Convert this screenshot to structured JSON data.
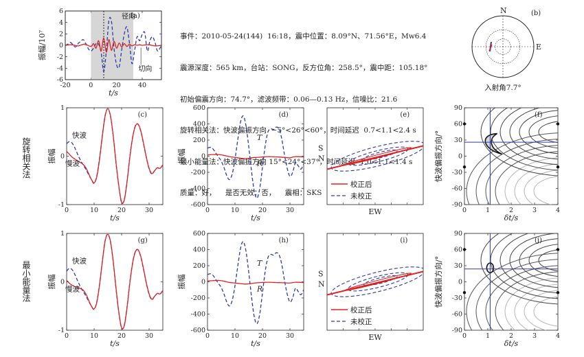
{
  "info_lines": [
    "事件：2010-05-24(144)  16:18，震中位置：8.09°N、71.56°E，Mw6.4",
    "震源深度：565 km，台站：SONG，反方位角：258.5°，震中距：105.18°",
    "初始偏震方向：74.7°，滤波频带：0.06—0.13 Hz，信噪比：21.6",
    "旋转相关法：快波偏振方向  −5°<26°<60°，时间延迟  0.7<1.1<2.4 s",
    "最小能量法：快波偏振方向 15°<24°<37°，时间延迟  1.0<1.1<1.4 s",
    "质量：好，    是否无效：否，    震相：SKS"
  ],
  "row_labels": {
    "rc": "旋转相关法",
    "me": "最小能量法"
  },
  "colors": {
    "red": "#e02020",
    "blue": "#2a3aa8",
    "gray": "#d6d6d6",
    "dark": "#222222"
  },
  "panel_letters": {
    "a": "(a)",
    "b": "(b)",
    "c": "(c)",
    "d": "(d)",
    "e": "(e)",
    "f": "(f)",
    "g": "(g)",
    "h": "(h)",
    "i": "(i)",
    "j": "(j)"
  },
  "panel_b": {
    "labels": {
      "n": "N",
      "e": "E"
    },
    "incidence": "入射角7.7°"
  },
  "chart_data": [
    {
      "id": "a",
      "type": "line",
      "xlabel": "t/s",
      "ylabel": "振幅/10⁷",
      "xlim": [
        -20,
        55
      ],
      "ylim": [
        -6,
        6
      ],
      "xticks": [
        -20,
        0,
        20,
        40
      ],
      "yticks": [
        -6,
        -4,
        -2,
        0,
        2,
        4,
        6
      ],
      "shaded_window": [
        0,
        33
      ],
      "marker_line": 10,
      "annotations": {
        "radial": "径向",
        "transverse": "切向"
      },
      "series": [
        {
          "name": "径向",
          "style": "dashed",
          "x": [
            -20,
            -18,
            -16,
            -14,
            -12,
            -10,
            -8,
            -6,
            -4,
            -2,
            0,
            2,
            4,
            6,
            8,
            10,
            12,
            14,
            16,
            18,
            20,
            22,
            24,
            26,
            28,
            30,
            32,
            34,
            36,
            38,
            40,
            42,
            44,
            46,
            48,
            50,
            52,
            55
          ],
          "y": [
            0,
            0.2,
            0.5,
            0.1,
            -0.3,
            0.3,
            0.7,
            1.0,
            0.3,
            -0.6,
            -1.0,
            -0.5,
            0.3,
            0.2,
            -1.3,
            -4.6,
            -1.0,
            4.3,
            4.2,
            -0.5,
            -3.4,
            -3.8,
            -0.8,
            2.0,
            3.2,
            0.5,
            -3.2,
            -1.0,
            1.5,
            0.8,
            1.9,
            2.2,
            -1.0,
            0.8,
            1.5,
            0.5,
            -1.0,
            0
          ]
        },
        {
          "name": "切向",
          "style": "solid",
          "x": [
            -20,
            -15,
            -10,
            -5,
            0,
            2,
            4,
            6,
            8,
            10,
            12,
            14,
            16,
            18,
            20,
            22,
            24,
            26,
            28,
            30,
            32,
            34,
            36,
            38,
            40,
            45,
            50,
            55
          ],
          "y": [
            0,
            0.1,
            -0.1,
            0.2,
            -0.2,
            0.3,
            -0.5,
            0.8,
            -1.0,
            1.3,
            -1.2,
            1.0,
            -0.9,
            0.7,
            -0.5,
            0.4,
            -0.3,
            0.3,
            -0.2,
            0.2,
            -0.1,
            0.1,
            0,
            0.1,
            0,
            0.1,
            -0.1,
            0
          ]
        }
      ]
    },
    {
      "id": "c",
      "type": "line",
      "xlabel": "t/s",
      "ylabel": "振幅",
      "xlim": [
        0,
        35
      ],
      "ylim": [
        -1,
        1
      ],
      "xticks": [
        0,
        10,
        20,
        30
      ],
      "yticks": [
        -1,
        0,
        1
      ],
      "annotations": {
        "fast": "快波",
        "slow": "慢波"
      },
      "series": [
        {
          "name": "快波",
          "style": "solid",
          "x": [
            0,
            1,
            2,
            3,
            4,
            5,
            6,
            7,
            8,
            9,
            10,
            11,
            12,
            13,
            14,
            15,
            16,
            17,
            18,
            19,
            20,
            21,
            22,
            23,
            24,
            25,
            26,
            27,
            28,
            29,
            30,
            31,
            32,
            33,
            34,
            35
          ],
          "y": [
            0.1,
            0.04,
            -0.02,
            -0.06,
            -0.1,
            -0.13,
            -0.17,
            -0.24,
            -0.36,
            -0.48,
            -0.55,
            -0.42,
            -0.05,
            0.42,
            0.83,
            0.98,
            0.82,
            0.4,
            -0.15,
            -0.62,
            -0.95,
            -0.9,
            -0.52,
            -0.02,
            0.38,
            0.62,
            0.66,
            0.52,
            0.26,
            -0.02,
            -0.25,
            -0.36,
            -0.3,
            -0.24,
            -0.25,
            -0.18
          ]
        },
        {
          "name": "慢波",
          "style": "dashed",
          "x": [
            0,
            1,
            2,
            3,
            4,
            5,
            6,
            7,
            8,
            9,
            10,
            11,
            12,
            13,
            14,
            15,
            16,
            17,
            18,
            19,
            20,
            21,
            22,
            23,
            24,
            25,
            26,
            27,
            28,
            29,
            30,
            31,
            32,
            33,
            34,
            35
          ],
          "y": [
            0.26,
            0.3,
            0.27,
            0.17,
            0.04,
            -0.08,
            -0.18,
            -0.27,
            -0.38,
            -0.48,
            -0.56,
            -0.4,
            -0.03,
            0.43,
            0.84,
            0.98,
            0.81,
            0.39,
            -0.16,
            -0.63,
            -0.96,
            -0.89,
            -0.51,
            -0.01,
            0.39,
            0.63,
            0.66,
            0.51,
            0.25,
            -0.03,
            -0.26,
            -0.37,
            -0.3,
            -0.24,
            -0.25,
            -0.18
          ]
        }
      ]
    },
    {
      "id": "d",
      "type": "line",
      "xlabel": "t/s",
      "ylabel": "振幅",
      "xlim": [
        0,
        35
      ],
      "ylim": [
        -600,
        600
      ],
      "xticks": [
        0,
        10,
        20,
        30
      ],
      "yticks": [
        -600,
        -400,
        -200,
        0,
        200,
        400,
        600
      ],
      "annotations": {
        "t": "T",
        "r": "R"
      },
      "series": [
        {
          "name": "T",
          "style": "dashed",
          "x": [
            0,
            1,
            2,
            3,
            4,
            5,
            6,
            7,
            8,
            9,
            10,
            11,
            12,
            13,
            14,
            15,
            16,
            17,
            18,
            19,
            20,
            21,
            22,
            23,
            24,
            25,
            26,
            27,
            28,
            29,
            30,
            31,
            32,
            33,
            34,
            35
          ],
          "y": [
            100,
            110,
            90,
            40,
            -10,
            -60,
            -140,
            -240,
            -290,
            -220,
            -40,
            200,
            420,
            500,
            380,
            120,
            -180,
            -430,
            -520,
            -400,
            -140,
            130,
            300,
            340,
            330,
            360,
            340,
            220,
            20,
            -150,
            -250,
            -200,
            -80,
            -120,
            -160,
            -100
          ]
        },
        {
          "name": "R",
          "style": "solid",
          "x": [
            0,
            2,
            4,
            6,
            8,
            10,
            12,
            14,
            16,
            18,
            20,
            22,
            24,
            26,
            28,
            30,
            32,
            35
          ],
          "y": [
            15,
            20,
            20,
            10,
            -5,
            -15,
            -25,
            -30,
            -20,
            -15,
            -10,
            -5,
            -8,
            -10,
            -15,
            -20,
            -5,
            -10
          ]
        }
      ]
    },
    {
      "id": "e",
      "type": "scatter",
      "xlabel": "EW",
      "ylabel": "SN",
      "legend": {
        "corrected": "校正后",
        "uncorrected": "未校正"
      }
    },
    {
      "id": "f",
      "type": "heatmap",
      "xlabel": "δt/s",
      "ylabel": "快波偏振方向/°",
      "xlim": [
        0,
        4
      ],
      "ylim": [
        -90,
        90
      ],
      "xticks": [
        0,
        1,
        2,
        3,
        4
      ],
      "yticks": [
        -90,
        -60,
        -30,
        0,
        30,
        60,
        90
      ],
      "best": {
        "x": 1.1,
        "y": 26
      }
    },
    {
      "id": "g",
      "type": "line",
      "xlabel": "t/s",
      "ylabel": "振幅",
      "xlim": [
        0,
        35
      ],
      "ylim": [
        -1,
        1
      ],
      "xticks": [
        0,
        10,
        20,
        30
      ],
      "yticks": [
        -1,
        0,
        1
      ],
      "annotations": {
        "fast": "快波",
        "slow": "慢波"
      },
      "series": [
        {
          "name": "快波",
          "style": "solid",
          "x": [
            0,
            1,
            2,
            3,
            4,
            5,
            6,
            7,
            8,
            9,
            10,
            11,
            12,
            13,
            14,
            15,
            16,
            17,
            18,
            19,
            20,
            21,
            22,
            23,
            24,
            25,
            26,
            27,
            28,
            29,
            30,
            31,
            32,
            33,
            34,
            35
          ],
          "y": [
            0.03,
            -0.03,
            -0.07,
            -0.1,
            -0.12,
            -0.14,
            -0.17,
            -0.25,
            -0.38,
            -0.5,
            -0.56,
            -0.42,
            -0.05,
            0.42,
            0.84,
            0.98,
            0.82,
            0.4,
            -0.15,
            -0.63,
            -0.95,
            -0.9,
            -0.52,
            -0.02,
            0.38,
            0.62,
            0.66,
            0.52,
            0.26,
            -0.02,
            -0.25,
            -0.36,
            -0.3,
            -0.24,
            -0.25,
            -0.18
          ]
        },
        {
          "name": "慢波",
          "style": "dashed",
          "x": [
            0,
            1,
            2,
            3,
            4,
            5,
            6,
            7,
            8,
            9,
            10,
            11,
            12,
            13,
            14,
            15,
            16,
            17,
            18,
            19,
            20,
            21,
            22,
            23,
            24,
            25,
            26,
            27,
            28,
            29,
            30,
            31,
            32,
            33,
            34,
            35
          ],
          "y": [
            0.22,
            0.28,
            0.25,
            0.15,
            0.02,
            -0.1,
            -0.2,
            -0.29,
            -0.4,
            -0.5,
            -0.57,
            -0.41,
            -0.04,
            0.43,
            0.85,
            0.98,
            0.81,
            0.39,
            -0.16,
            -0.64,
            -0.96,
            -0.89,
            -0.51,
            -0.01,
            0.39,
            0.63,
            0.66,
            0.51,
            0.25,
            -0.03,
            -0.26,
            -0.37,
            -0.3,
            -0.24,
            -0.25,
            -0.18
          ]
        }
      ]
    },
    {
      "id": "h",
      "type": "line",
      "xlabel": "t/s",
      "ylabel": "振幅",
      "xlim": [
        0,
        35
      ],
      "ylim": [
        -600,
        600
      ],
      "xticks": [
        0,
        10,
        20,
        30
      ],
      "yticks": [
        -600,
        -400,
        -200,
        0,
        200,
        400,
        600
      ],
      "annotations": {
        "t": "T",
        "r": "R"
      },
      "series": [
        {
          "name": "T",
          "style": "dashed",
          "x": [
            0,
            1,
            2,
            3,
            4,
            5,
            6,
            7,
            8,
            9,
            10,
            11,
            12,
            13,
            14,
            15,
            16,
            17,
            18,
            19,
            20,
            21,
            22,
            23,
            24,
            25,
            26,
            27,
            28,
            29,
            30,
            31,
            32,
            33,
            34,
            35
          ],
          "y": [
            90,
            100,
            80,
            30,
            -20,
            -70,
            -150,
            -250,
            -300,
            -230,
            -50,
            190,
            410,
            500,
            380,
            120,
            -180,
            -430,
            -520,
            -400,
            -140,
            130,
            300,
            340,
            330,
            360,
            340,
            220,
            20,
            -150,
            -250,
            -200,
            -80,
            -120,
            -160,
            -100
          ]
        },
        {
          "name": "R",
          "style": "solid",
          "x": [
            0,
            2,
            4,
            6,
            8,
            10,
            12,
            14,
            16,
            18,
            20,
            22,
            24,
            26,
            28,
            30,
            32,
            35
          ],
          "y": [
            10,
            15,
            18,
            8,
            -8,
            -15,
            -22,
            -28,
            -20,
            -12,
            -8,
            -5,
            -8,
            -10,
            -12,
            -15,
            -5,
            -10
          ]
        }
      ]
    },
    {
      "id": "i",
      "type": "scatter",
      "xlabel": "EW",
      "ylabel": "SN",
      "legend": {
        "corrected": "校正后",
        "uncorrected": "未校正"
      }
    },
    {
      "id": "j",
      "type": "heatmap",
      "xlabel": "δt/s",
      "ylabel": "快波偏振方向/°",
      "xlim": [
        0,
        4
      ],
      "ylim": [
        -90,
        90
      ],
      "xticks": [
        0,
        1,
        2,
        3,
        4
      ],
      "yticks": [
        -90,
        -60,
        -30,
        0,
        30,
        60,
        90
      ],
      "best": {
        "x": 1.1,
        "y": 24
      }
    }
  ]
}
